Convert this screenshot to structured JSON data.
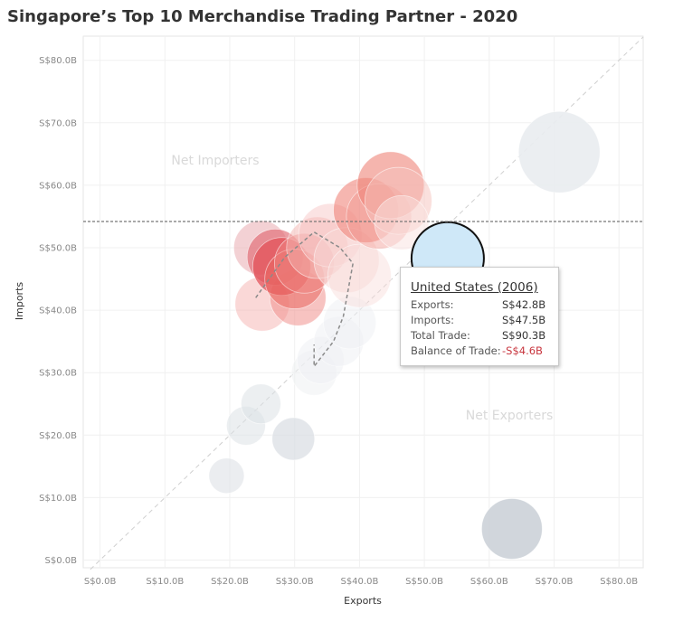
{
  "title": "Singapore’s Top 10 Merchandise Trading Partner - 2020",
  "chart_data": {
    "type": "scatter",
    "title": "Singapore’s Top 10 Merchandise Trading Partner - 2020",
    "xlabel": "Exports",
    "ylabel": "Imports",
    "xlim": [
      0,
      85
    ],
    "ylim": [
      0,
      80
    ],
    "x_ticks": [
      "S$0.0B",
      "S$10.0B",
      "S$20.0B",
      "S$30.0B",
      "S$40.0B",
      "S$50.0B",
      "S$60.0B",
      "S$70.0B",
      "S$80.0B"
    ],
    "y_ticks": [
      "S$0.0B",
      "S$10.0B",
      "S$20.0B",
      "S$30.0B",
      "S$40.0B",
      "S$50.0B",
      "S$60.0B",
      "S$70.0B",
      "S$80.0B"
    ],
    "grid": true,
    "reference_line_y": 54.2,
    "annotations": [
      "Net Importers",
      "Net Exporters"
    ],
    "colors": {
      "red": "#e8534f",
      "grey": "#dde1e6",
      "highlight": "#cfe8f8",
      "pink": "#f2b8b8"
    },
    "points": [
      {
        "x": 70.8,
        "y": 65.3,
        "size": 90.0,
        "color": "#e9ecef",
        "alpha": 0.9
      },
      {
        "x": 63.5,
        "y": 5.0,
        "size": 67.0,
        "color": "#c9cfd6",
        "alpha": 0.85
      },
      {
        "x": 22.5,
        "y": 21.5,
        "size": 43.0,
        "color": "#dde1e6",
        "alpha": 0.55
      },
      {
        "x": 24.8,
        "y": 25.0,
        "size": 44.0,
        "color": "#dde1e6",
        "alpha": 0.55
      },
      {
        "x": 29.8,
        "y": 19.4,
        "size": 47.0,
        "color": "#d8dde3",
        "alpha": 0.7
      },
      {
        "x": 19.5,
        "y": 13.5,
        "size": 39.0,
        "color": "#dde1e6",
        "alpha": 0.6
      },
      {
        "x": 33.0,
        "y": 30.0,
        "size": 50.0,
        "color": "#eef0f3",
        "alpha": 0.55
      },
      {
        "x": 34.0,
        "y": 32.0,
        "size": 52.0,
        "color": "#eef0f3",
        "alpha": 0.5
      },
      {
        "x": 36.8,
        "y": 35.0,
        "size": 55.0,
        "color": "#eef0f3",
        "alpha": 0.5
      },
      {
        "x": 38.5,
        "y": 38.0,
        "size": 58.0,
        "color": "#eef0f3",
        "alpha": 0.5
      },
      {
        "x": 25.0,
        "y": 41.0,
        "size": 60.0,
        "color": "#f4a9a6",
        "alpha": 0.45
      },
      {
        "x": 30.5,
        "y": 42.0,
        "size": 62.0,
        "color": "#f0928e",
        "alpha": 0.55
      },
      {
        "x": 24.8,
        "y": 50.0,
        "size": 60.0,
        "color": "#e8a4a9",
        "alpha": 0.5
      },
      {
        "x": 27.0,
        "y": 48.5,
        "size": 62.0,
        "color": "#e06a73",
        "alpha": 0.65
      },
      {
        "x": 28.0,
        "y": 47.0,
        "size": 64.0,
        "color": "#e24f55",
        "alpha": 0.7
      },
      {
        "x": 30.0,
        "y": 45.0,
        "size": 66.0,
        "color": "#ea6761",
        "alpha": 0.55
      },
      {
        "x": 31.5,
        "y": 47.5,
        "size": 66.0,
        "color": "#f08883",
        "alpha": 0.5
      },
      {
        "x": 33.5,
        "y": 50.0,
        "size": 68.0,
        "color": "#f4b3b0",
        "alpha": 0.5
      },
      {
        "x": 35.5,
        "y": 52.0,
        "size": 70.0,
        "color": "#f7c2c0",
        "alpha": 0.45
      },
      {
        "x": 38.0,
        "y": 48.0,
        "size": 72.0,
        "color": "#f8d7d6",
        "alpha": 0.5
      },
      {
        "x": 40.0,
        "y": 45.5,
        "size": 70.0,
        "color": "#f9dcda",
        "alpha": 0.45
      },
      {
        "x": 41.0,
        "y": 56.0,
        "size": 72.0,
        "color": "#ef7a70",
        "alpha": 0.55
      },
      {
        "x": 43.0,
        "y": 55.0,
        "size": 72.0,
        "color": "#f29a92",
        "alpha": 0.45
      },
      {
        "x": 44.8,
        "y": 60.0,
        "size": 74.0,
        "color": "#ef8478",
        "alpha": 0.6
      },
      {
        "x": 46.0,
        "y": 57.5,
        "size": 74.0,
        "color": "#f6c2bc",
        "alpha": 0.5
      },
      {
        "x": 46.5,
        "y": 54.0,
        "size": 60.0,
        "color": "#f9e2e0",
        "alpha": 0.5
      },
      {
        "x": 53.6,
        "y": 48.3,
        "size": 80.0,
        "color": "#cfe8f8",
        "alpha": 1.0,
        "highlight": true
      }
    ],
    "trail": [
      [
        24.0,
        42.0
      ],
      [
        28.5,
        48.5
      ],
      [
        33.0,
        52.5
      ],
      [
        37.0,
        50.0
      ],
      [
        39.0,
        47.5
      ],
      [
        37.5,
        39.0
      ],
      [
        36.0,
        35.0
      ],
      [
        33.0,
        31.0
      ],
      [
        33.0,
        34.5
      ]
    ],
    "tooltip": {
      "title": "United States (2006)",
      "rows": [
        {
          "label": "Exports:",
          "value": "S$42.8B"
        },
        {
          "label": "Imports:",
          "value": "S$47.5B"
        },
        {
          "label": "Total Trade:",
          "value": "S$90.3B"
        },
        {
          "label": "Balance of Trade:",
          "value": "-S$4.6B"
        }
      ]
    }
  }
}
